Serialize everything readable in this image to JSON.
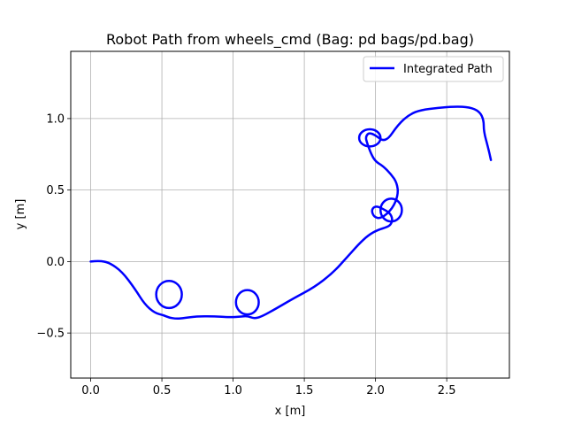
{
  "chart_data": {
    "type": "line",
    "title": "Robot Path from wheels_cmd (Bag: pd bags/pd.bag)",
    "xlabel": "x [m]",
    "ylabel": "y [m]",
    "xlim": [
      -0.14,
      2.94
    ],
    "ylim": [
      -0.815,
      1.47
    ],
    "x_ticks": [
      0.0,
      0.5,
      1.0,
      1.5,
      2.0,
      2.5
    ],
    "x_tick_labels": [
      "0.0",
      "0.5",
      "1.0",
      "1.5",
      "2.0",
      "2.5"
    ],
    "y_ticks": [
      -0.5,
      0.0,
      0.5,
      1.0
    ],
    "y_tick_labels": [
      "−0.5",
      "0.0",
      "0.5",
      "1.0"
    ],
    "grid": true,
    "legend_position": "top-right",
    "series": [
      {
        "name": "Integrated Path",
        "color": "#0000ff",
        "x": [
          0.0,
          0.06,
          0.13,
          0.22,
          0.31,
          0.38,
          0.45,
          0.51,
          0.55,
          0.6,
          0.66,
          0.74,
          0.86,
          0.98,
          1.05,
          1.1,
          1.15,
          1.21,
          1.3,
          1.42,
          1.57,
          1.7,
          1.8,
          1.88,
          1.95,
          2.02,
          2.08,
          2.11,
          2.12,
          2.1,
          2.05,
          2.0,
          1.97,
          1.99,
          2.04,
          2.12,
          2.16,
          2.15,
          2.11,
          2.05,
          2.0,
          1.97,
          1.94,
          1.93,
          1.95,
          1.99,
          2.07,
          2.16,
          2.24,
          2.32,
          2.44,
          2.56,
          2.66,
          2.73,
          2.76,
          2.76,
          2.79,
          2.81
        ],
        "y": [
          0.0,
          0.006,
          -0.007,
          -0.07,
          -0.19,
          -0.3,
          -0.36,
          -0.375,
          -0.392,
          -0.4,
          -0.395,
          -0.384,
          -0.383,
          -0.39,
          -0.385,
          -0.38,
          -0.4,
          -0.38,
          -0.33,
          -0.26,
          -0.18,
          -0.08,
          0.03,
          0.12,
          0.185,
          0.223,
          0.24,
          0.26,
          0.3,
          0.34,
          0.37,
          0.39,
          0.36,
          0.31,
          0.3,
          0.37,
          0.47,
          0.55,
          0.61,
          0.67,
          0.7,
          0.75,
          0.83,
          0.87,
          0.9,
          0.89,
          0.83,
          0.96,
          1.03,
          1.06,
          1.075,
          1.085,
          1.08,
          1.05,
          0.99,
          0.91,
          0.8,
          0.71
        ]
      }
    ],
    "loops": [
      {
        "cx": 0.55,
        "cy": -0.23,
        "rx": 0.09,
        "ry": 0.095
      },
      {
        "cx": 1.1,
        "cy": -0.285,
        "rx": 0.08,
        "ry": 0.085
      },
      {
        "cx": 2.11,
        "cy": 0.36,
        "rx": 0.075,
        "ry": 0.08
      },
      {
        "cx": 1.96,
        "cy": 0.865,
        "rx": 0.075,
        "ry": 0.06
      }
    ]
  }
}
